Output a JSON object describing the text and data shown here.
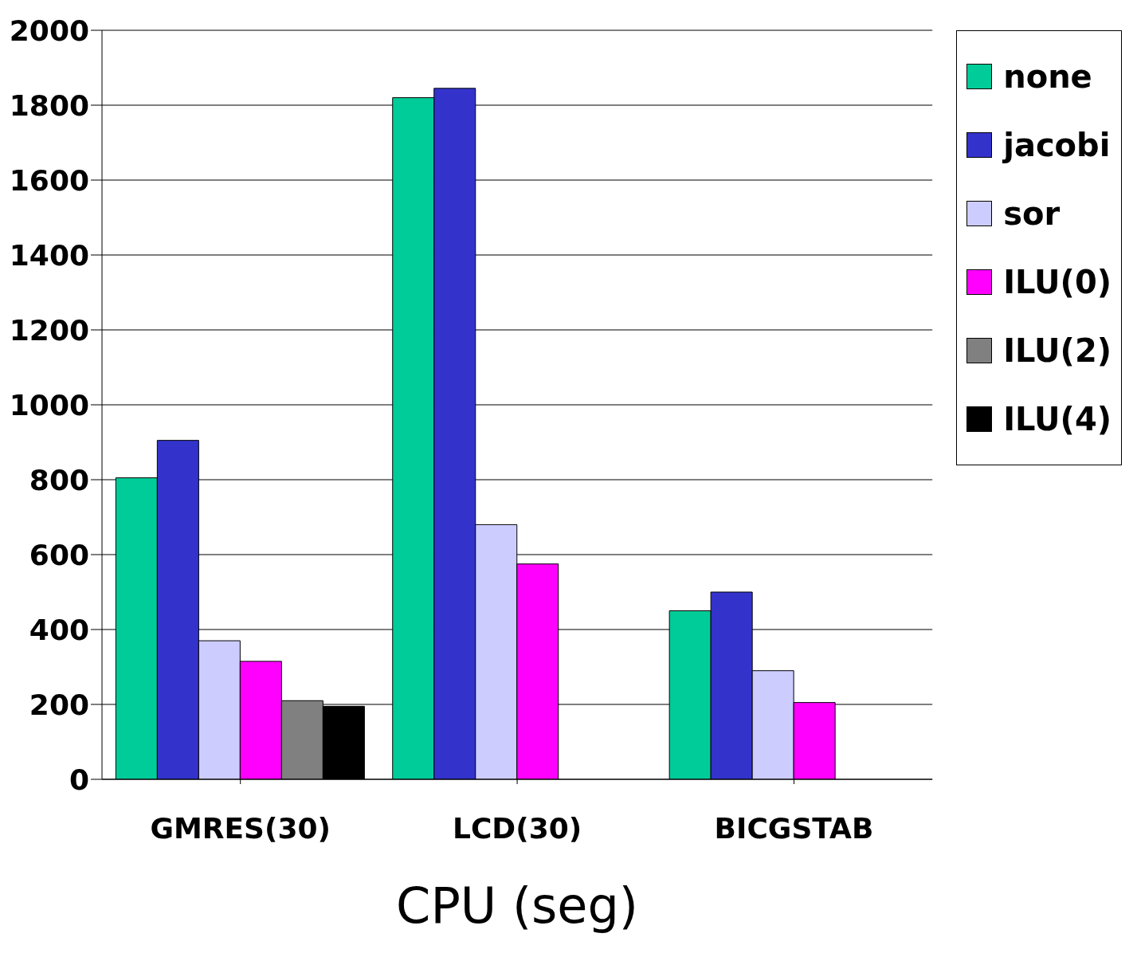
{
  "chart_data": {
    "type": "bar",
    "xlabel": "CPU (seg)",
    "categories": [
      "GMRES(30)",
      "LCD(30)",
      "BICGSTAB"
    ],
    "series": [
      {
        "name": "none",
        "color": "#00cc99",
        "values": [
          805,
          1820,
          450
        ]
      },
      {
        "name": "jacobi",
        "color": "#3333cc",
        "values": [
          905,
          1845,
          500
        ]
      },
      {
        "name": "sor",
        "color": "#ccccff",
        "values": [
          370,
          680,
          290
        ]
      },
      {
        "name": "ILU(0)",
        "color": "#ff00ff",
        "values": [
          315,
          575,
          205
        ]
      },
      {
        "name": "ILU(2)",
        "color": "#808080",
        "values": [
          210,
          null,
          null
        ]
      },
      {
        "name": "ILU(4)",
        "color": "#000000",
        "values": [
          195,
          null,
          null
        ]
      }
    ],
    "ylim": [
      0,
      2000
    ],
    "yticks": [
      0,
      200,
      400,
      600,
      800,
      1000,
      1200,
      1400,
      1600,
      1800,
      2000
    ],
    "grid": "y",
    "legend": "right"
  }
}
